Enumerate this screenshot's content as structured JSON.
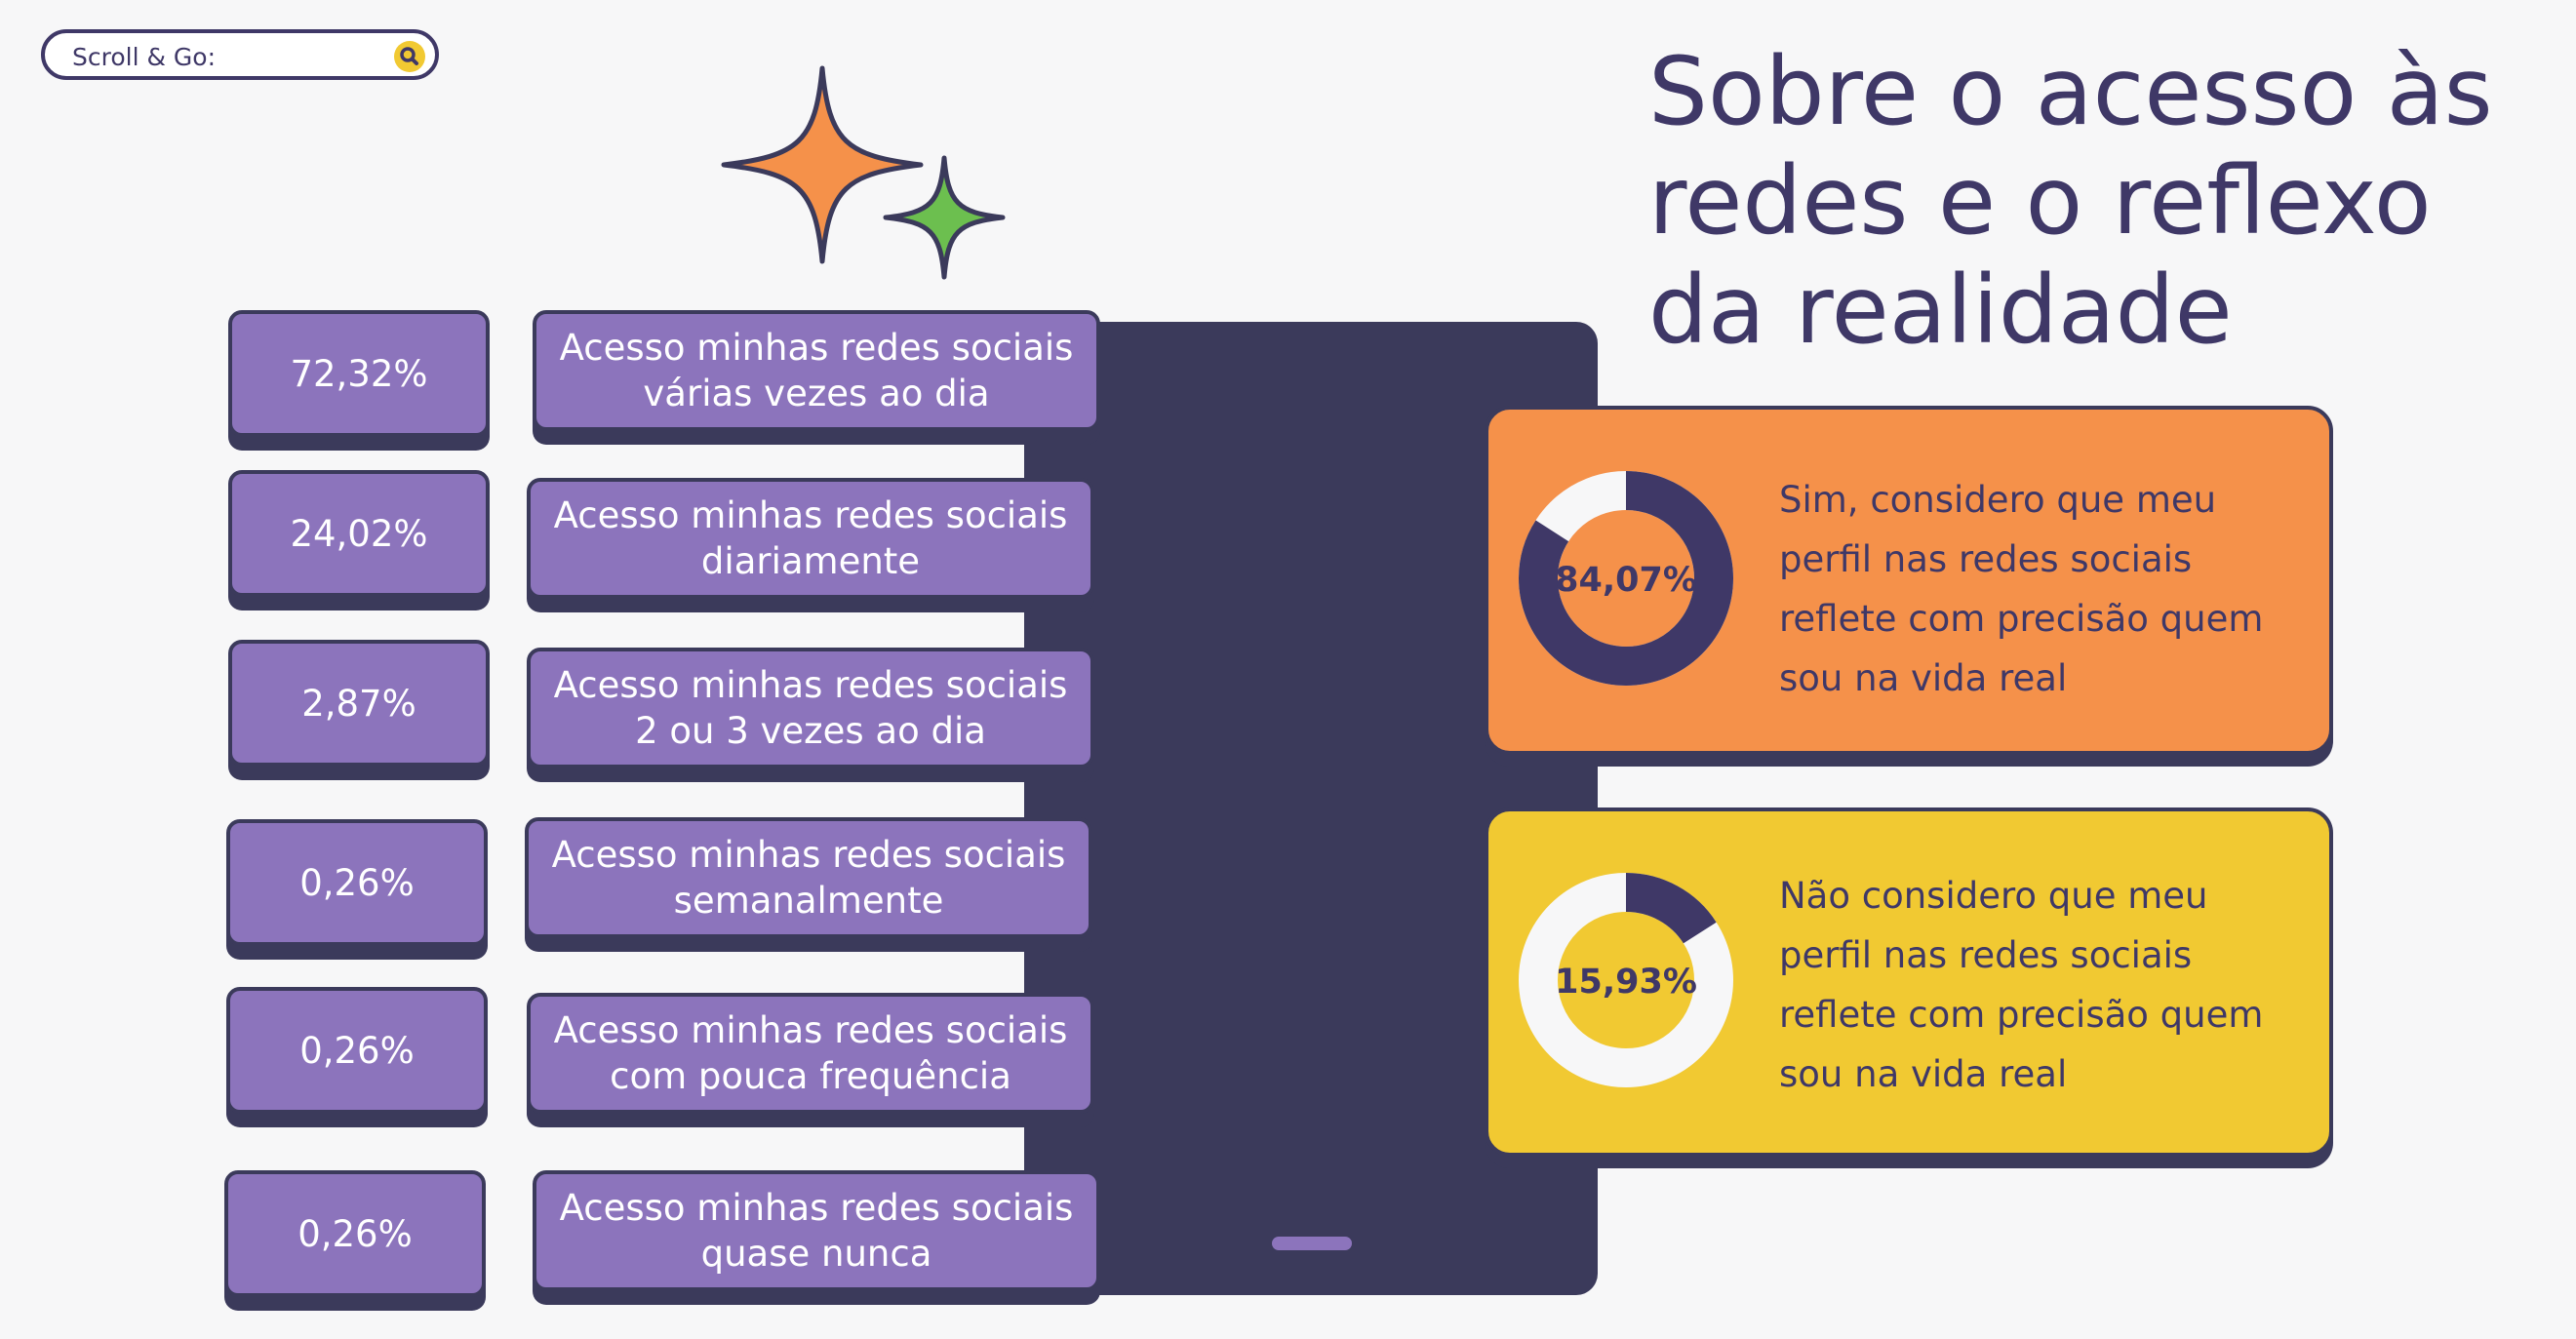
{
  "search": {
    "label": "Scroll & Go:"
  },
  "title": "Sobre o acesso às redes e o reflexo da realidade",
  "colors": {
    "purple": "#8c74bc",
    "dark": "#3b3a5b",
    "orange": "#f5914a",
    "yellow": "#f1c932",
    "green": "#6cbf4f"
  },
  "chart_data": [
    {
      "type": "table",
      "rows": [
        {
          "value": "72,32%",
          "label": "Acesso minhas redes sociais várias vezes ao dia"
        },
        {
          "value": "24,02%",
          "label": "Acesso minhas redes sociais diariamente"
        },
        {
          "value": "2,87%",
          "label": "Acesso minhas redes sociais 2 ou 3 vezes ao dia"
        },
        {
          "value": "0,26%",
          "label": "Acesso minhas redes sociais semanalmente"
        },
        {
          "value": "0,26%",
          "label": "Acesso minhas redes sociais com pouca frequência"
        },
        {
          "value": "0,26%",
          "label": "Acesso minhas redes sociais quase nunca"
        }
      ]
    },
    {
      "type": "pie",
      "value_percent": 84.07,
      "center_label": "84,07%",
      "description": "Sim, considero que meu perfil nas redes sociais reflete com precisão quem sou na vida real"
    },
    {
      "type": "pie",
      "value_percent": 15.93,
      "center_label": "15,93%",
      "description": "Não considero que meu perfil nas redes sociais reflete com precisão quem sou na vida real"
    }
  ]
}
